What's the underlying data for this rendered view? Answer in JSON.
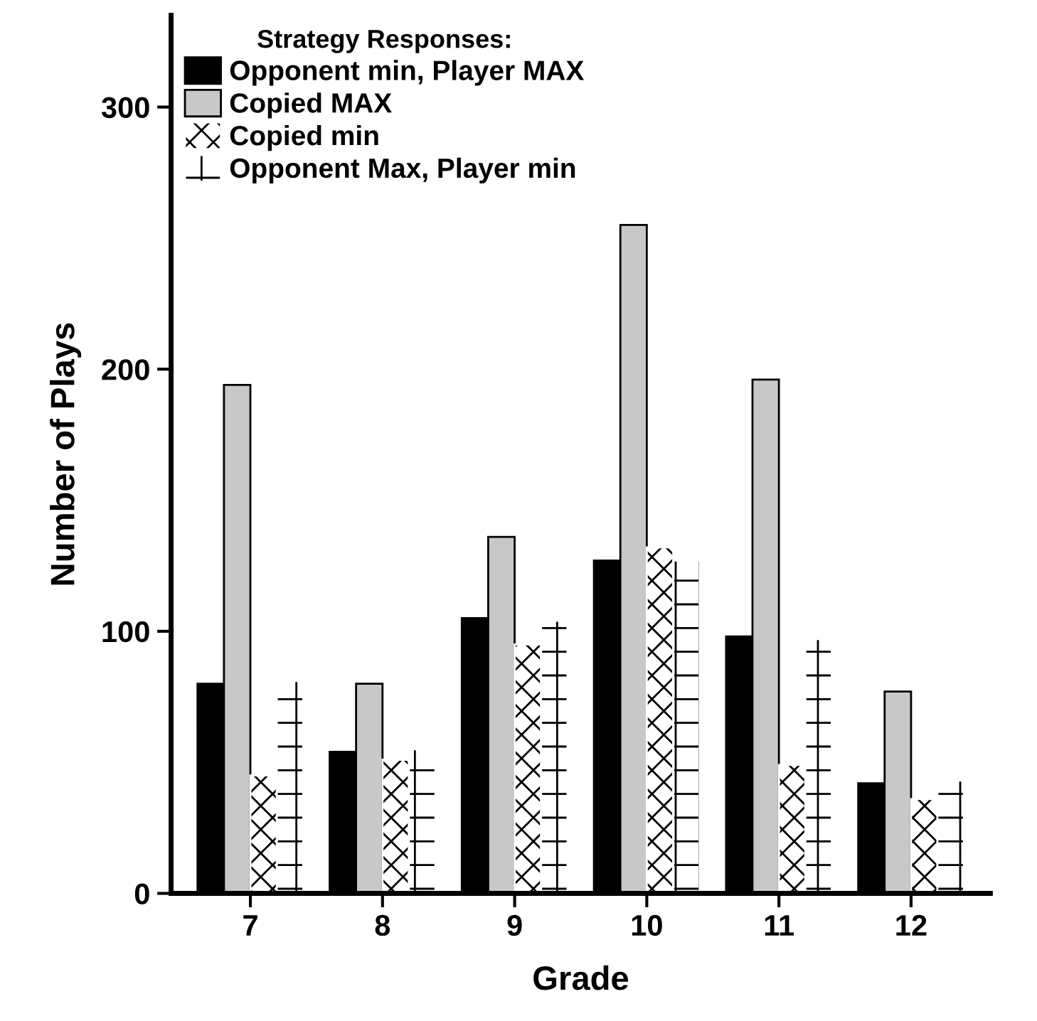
{
  "chart_data": {
    "type": "bar",
    "xlabel": "Grade",
    "ylabel": "Number of Plays",
    "legend_title": "Strategy Responses:",
    "categories": [
      "7",
      "8",
      "9",
      "10",
      "11",
      "12"
    ],
    "series": [
      {
        "name": "Opponent min, Player MAX",
        "color": "#000000",
        "values": [
          80,
          54,
          105,
          127,
          98,
          42
        ]
      },
      {
        "name": "Copied MAX",
        "color": "#c8c8c8",
        "values": [
          194,
          80,
          136,
          255,
          196,
          77
        ]
      },
      {
        "name": "Copied min",
        "color": "#ffffff",
        "values": [
          45,
          51,
          95,
          132,
          49,
          36
        ]
      },
      {
        "name": "Opponent Max, Player min",
        "color": "#ffffff",
        "values": [
          81,
          55,
          104,
          127,
          97,
          43
        ]
      }
    ],
    "ylim": [
      0,
      335
    ],
    "yticks": [
      0,
      100,
      200,
      300
    ],
    "grid": false,
    "legend": "top left"
  }
}
